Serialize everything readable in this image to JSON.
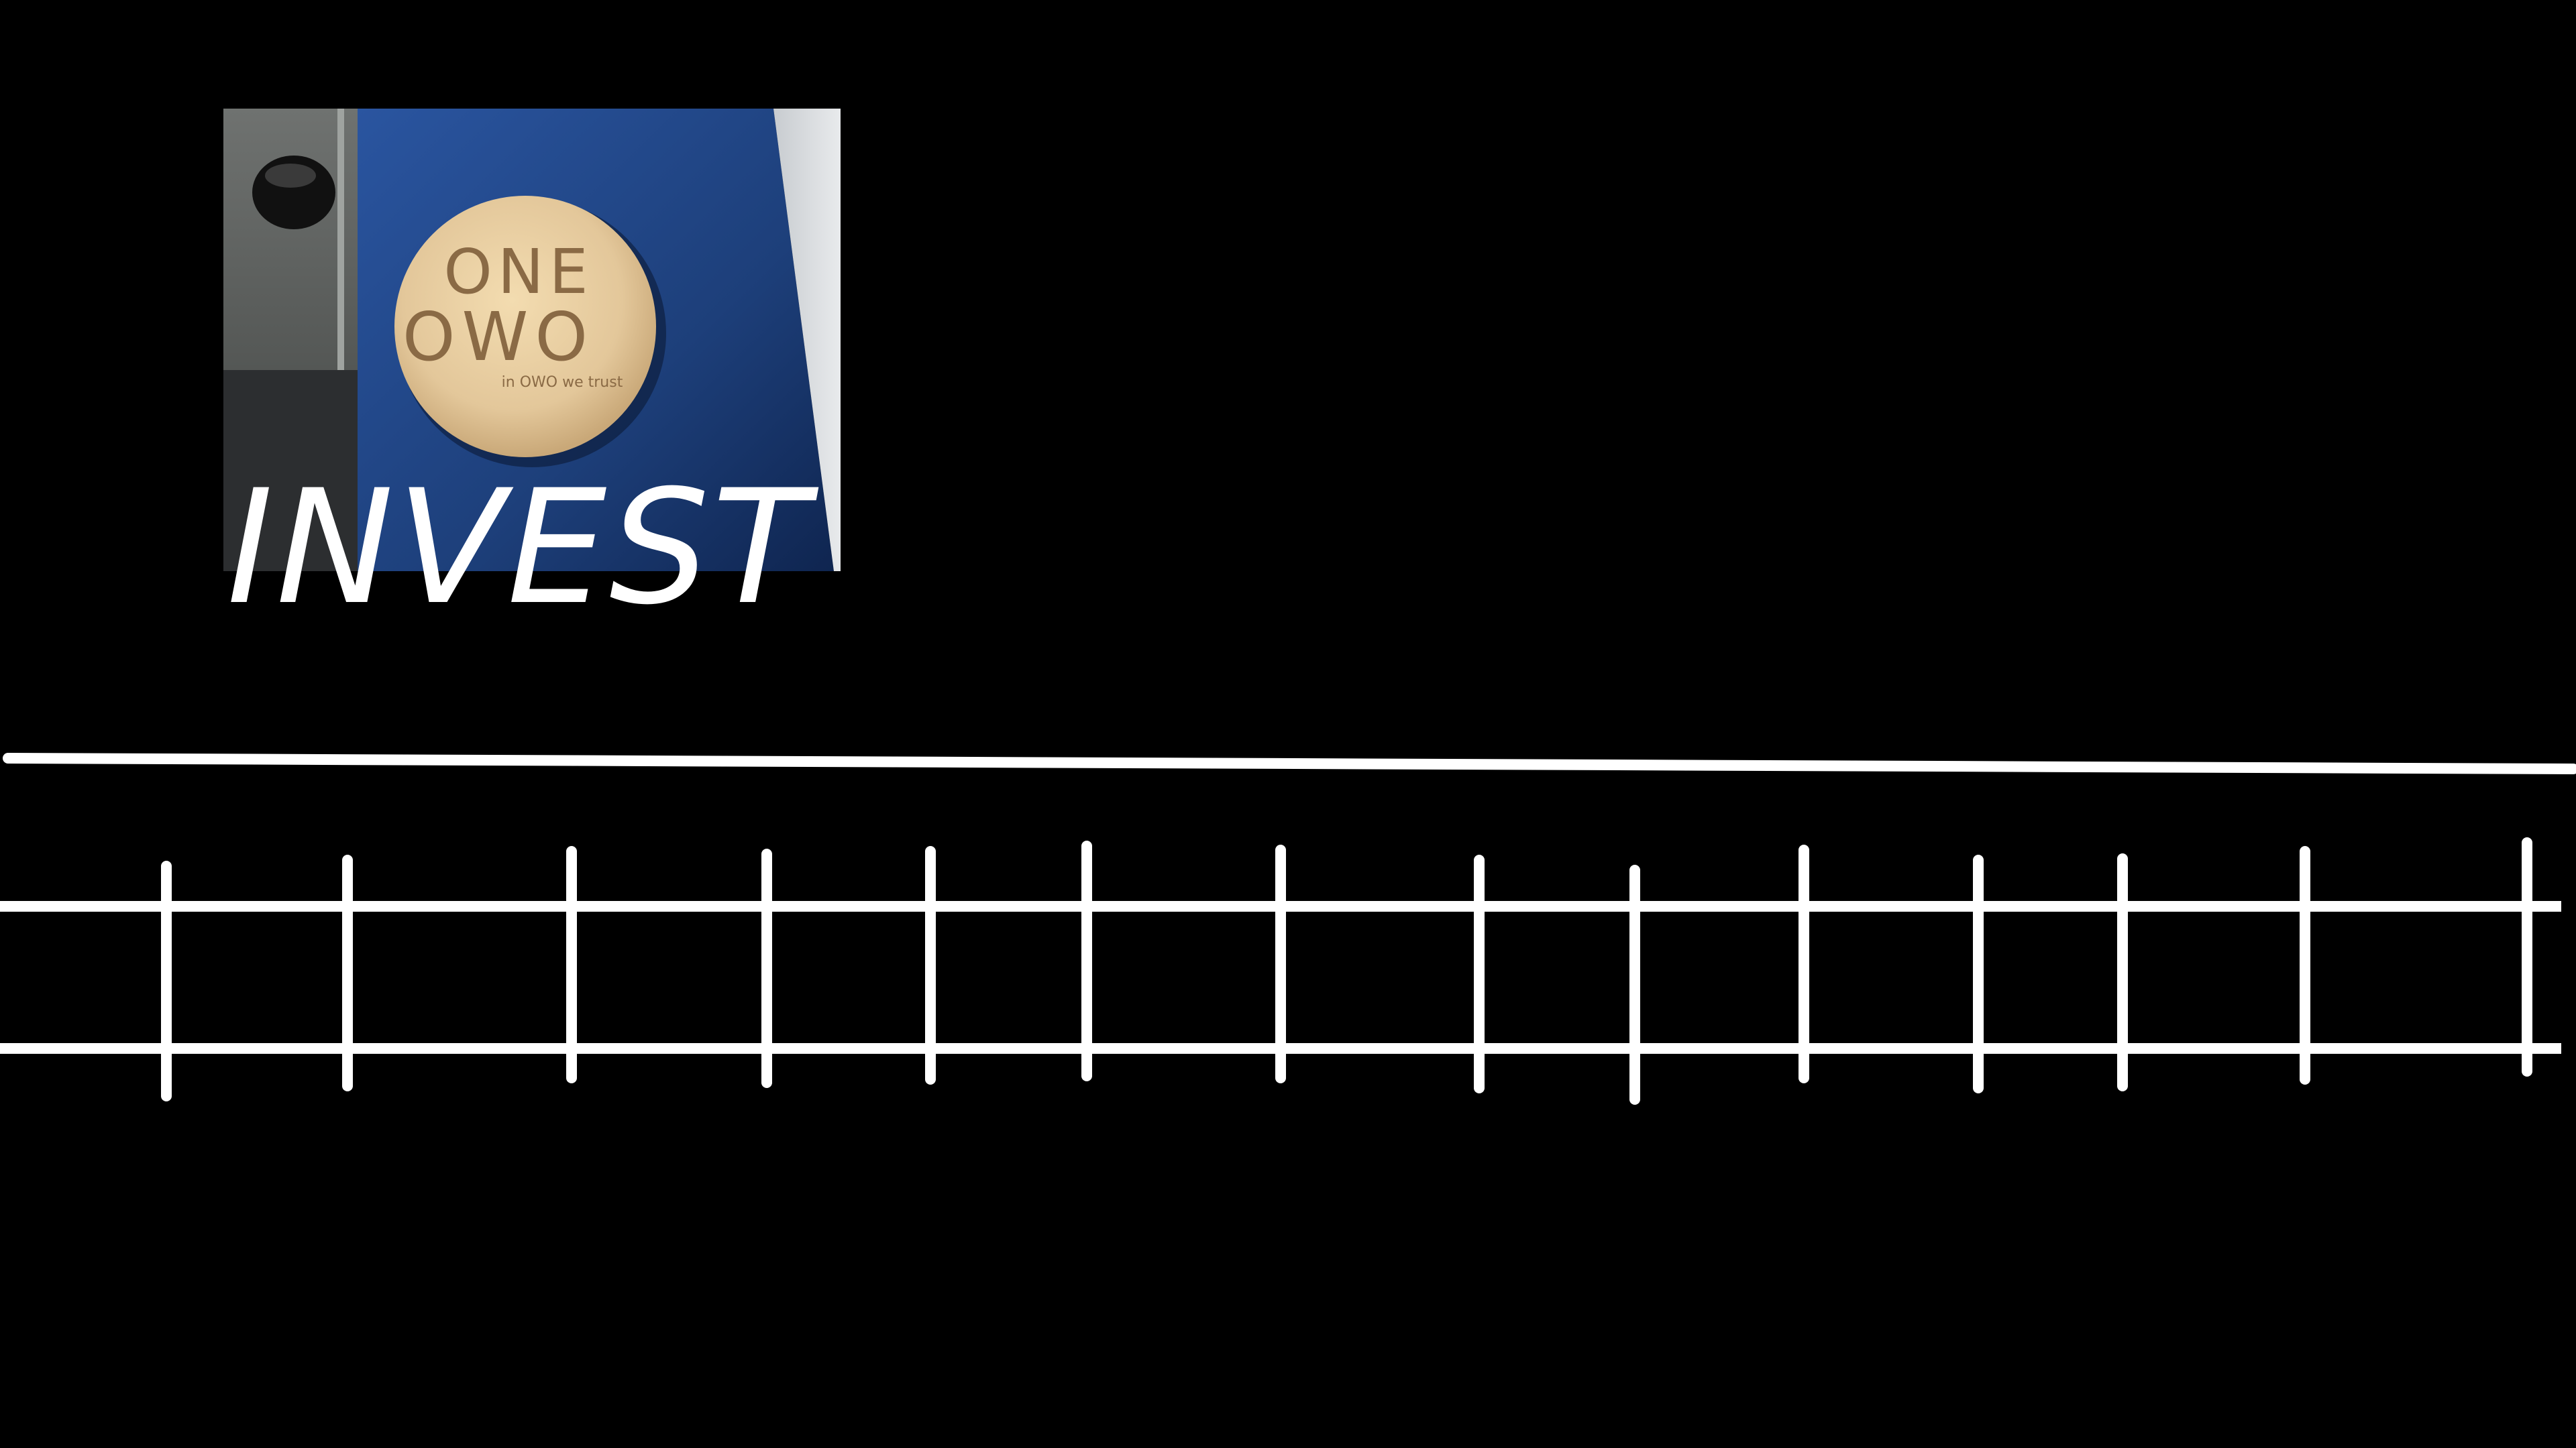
{
  "slide": {
    "title": "INVEST",
    "background_color": "#000000",
    "line_color": "#ffffff"
  },
  "photo": {
    "subject": "engraved wooden coin on blue machine surface",
    "coin_text_line1": "ONE",
    "coin_text_line2": "OWO",
    "coin_motto": "in OWO we trust",
    "colors": {
      "wood": "#e3c79a",
      "engraving": "#8a6a45",
      "machine_blue": "#1d3f7a",
      "metal_gray": "#5a5d60"
    }
  },
  "track": {
    "tie_count": 14
  }
}
